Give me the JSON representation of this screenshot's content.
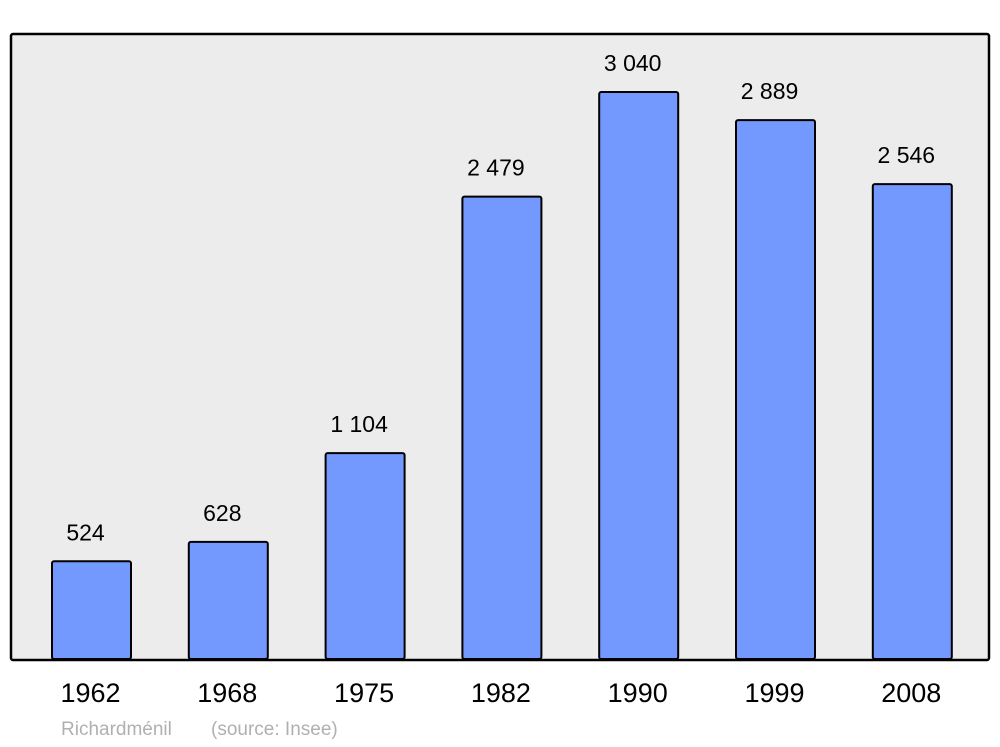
{
  "chart_data": {
    "type": "bar",
    "categories": [
      "1962",
      "1968",
      "1975",
      "1982",
      "1990",
      "1999",
      "2008"
    ],
    "values": [
      524,
      628,
      1104,
      2479,
      3040,
      2889,
      2546
    ],
    "value_labels": [
      "524",
      "628",
      "1 104",
      "2 479",
      "3 040",
      "2 889",
      "2 546"
    ],
    "color": "#7399ff",
    "caption": "Richardménil",
    "source": "(source: Insee)"
  }
}
